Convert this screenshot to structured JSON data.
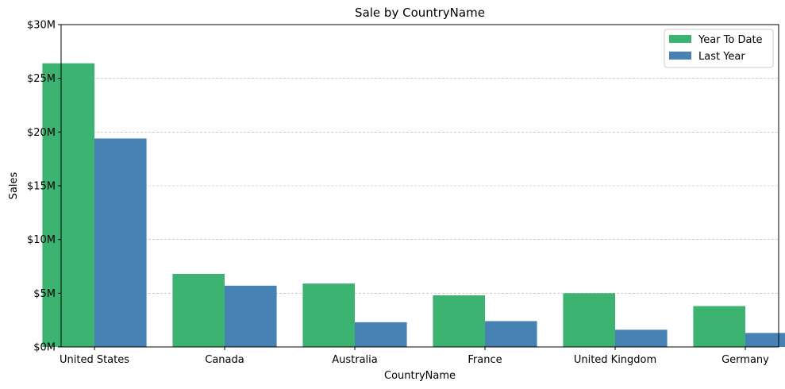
{
  "chart_data": {
    "type": "bar",
    "title": "Sale by CountryName",
    "xlabel": "CountryName",
    "ylabel": "Sales",
    "categories": [
      "United States",
      "Canada",
      "Australia",
      "France",
      "United Kingdom",
      "Germany"
    ],
    "series": [
      {
        "name": "Year To Date",
        "color": "#3cb371",
        "values": [
          26.4,
          6.8,
          5.9,
          4.8,
          5.0,
          3.8
        ]
      },
      {
        "name": "Last Year",
        "color": "#4682b4",
        "values": [
          19.4,
          5.7,
          2.3,
          2.4,
          1.6,
          1.3
        ]
      }
    ],
    "ylim": [
      0,
      30
    ],
    "yticks": [
      0,
      5,
      10,
      15,
      20,
      25,
      30
    ],
    "ytick_labels": [
      "$0M",
      "$5M",
      "$10M",
      "$15M",
      "$20M",
      "$25M",
      "$30M"
    ],
    "grid": "horizontal dashed",
    "legend_position": "top-right"
  }
}
